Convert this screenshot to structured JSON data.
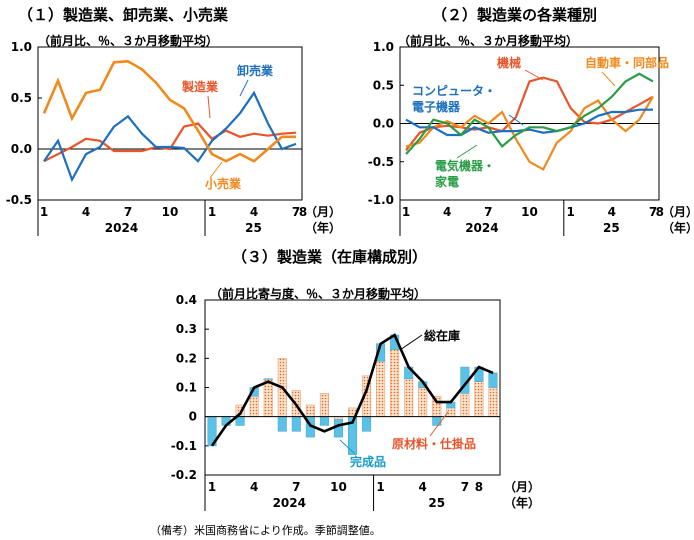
{
  "charts": [
    {
      "title": "（１）製造業、卸売業、小売業",
      "unit": "（前月比、％、３か月移動平均）",
      "ylim": [
        -0.5,
        1.0
      ],
      "yticks": [
        "1.0",
        "0.5",
        "0.0",
        "-0.5"
      ],
      "xtick_labels": [
        "1",
        "4",
        "7",
        "10",
        "1",
        "4",
        "7",
        "8"
      ],
      "xunit_month": "（月）",
      "xunit_year": "（年）",
      "year_labels": [
        "2024",
        "25"
      ],
      "series": [
        {
          "name": "製造業",
          "color": "#E8552B",
          "values": [
            -0.12,
            -0.05,
            0.02,
            0.1,
            0.08,
            -0.02,
            -0.02,
            -0.02,
            0.02,
            0.0,
            0.22,
            0.25,
            0.1,
            0.18,
            0.12,
            0.15,
            0.13,
            0.15,
            0.16
          ]
        },
        {
          "name": "卸売業",
          "color": "#1D6FBF",
          "values": [
            -0.12,
            0.08,
            -0.3,
            -0.05,
            0.02,
            0.22,
            0.32,
            0.15,
            0.02,
            0.02,
            0.01,
            -0.12,
            0.08,
            0.2,
            0.35,
            0.55,
            0.25,
            0.0,
            0.05
          ]
        },
        {
          "name": "小売業",
          "color": "#F08A1E",
          "values": [
            0.35,
            0.67,
            0.3,
            0.55,
            0.58,
            0.85,
            0.86,
            0.78,
            0.65,
            0.48,
            0.4,
            0.18,
            -0.05,
            -0.12,
            -0.05,
            -0.12,
            0.0,
            0.12,
            0.12
          ]
        }
      ]
    },
    {
      "title": "（２）製造業の各業種別",
      "unit": "（前月比、％、３か月移動平均）",
      "ylim": [
        -1.0,
        1.0
      ],
      "yticks": [
        "1.0",
        "0.5",
        "0.0",
        "-0.5",
        "-1.0"
      ],
      "xtick_labels": [
        "1",
        "4",
        "7",
        "10",
        "1",
        "4",
        "7",
        "8"
      ],
      "xunit_month": "（月）",
      "xunit_year": "（年）",
      "year_labels": [
        "2024",
        "25"
      ],
      "series": [
        {
          "name": "機械",
          "color": "#E8552B",
          "values": [
            -0.35,
            -0.12,
            -0.05,
            -0.03,
            -0.05,
            -0.08,
            -0.05,
            -0.1,
            0.08,
            0.55,
            0.6,
            0.55,
            0.2,
            0.02,
            0.0,
            0.05,
            0.15,
            0.25,
            0.35
          ]
        },
        {
          "name": "自動車・同部品",
          "color": "#F08A1E",
          "values": [
            -0.3,
            -0.25,
            -0.05,
            0.03,
            -0.05,
            0.1,
            0.0,
            0.15,
            -0.2,
            -0.5,
            -0.6,
            -0.25,
            -0.1,
            0.2,
            0.3,
            0.05,
            -0.1,
            0.05,
            0.35
          ]
        },
        {
          "name": "コンピュータ・電子機器",
          "color": "#1D6FBF",
          "values": [
            0.05,
            -0.05,
            -0.05,
            -0.15,
            -0.15,
            -0.05,
            -0.12,
            -0.1,
            -0.1,
            -0.08,
            -0.12,
            -0.1,
            -0.05,
            0.0,
            0.1,
            0.15,
            0.15,
            0.18,
            0.18
          ]
        },
        {
          "name": "電気機器・家電",
          "color": "#2A9C45",
          "values": [
            -0.4,
            -0.2,
            0.05,
            0.0,
            -0.15,
            0.05,
            -0.05,
            -0.3,
            -0.15,
            -0.05,
            -0.05,
            -0.1,
            -0.05,
            0.1,
            0.2,
            0.35,
            0.55,
            0.65,
            0.55
          ]
        }
      ]
    },
    {
      "title": "（３）製造業（在庫構成別）",
      "unit": "（前月比寄与度、％、３か月移動平均）",
      "ylim": [
        -0.2,
        0.4
      ],
      "yticks": [
        "0.4",
        "0.3",
        "0.2",
        "0.1",
        "0",
        "-0.1",
        "-0.2"
      ],
      "xtick_labels": [
        "1",
        "4",
        "7",
        "10",
        "1",
        "4",
        "7",
        "8"
      ],
      "xunit_month": "（月）",
      "xunit_year": "（年）",
      "year_labels": [
        "2024",
        "25"
      ],
      "stack_series": [
        {
          "name": "原材料・仕掛品",
          "color": "#F08A1E",
          "values": [
            0.0,
            0.0,
            0.04,
            0.07,
            0.13,
            0.2,
            0.09,
            0.04,
            0.08,
            -0.01,
            0.03,
            0.14,
            0.19,
            0.23,
            0.13,
            0.1,
            0.07,
            0.03,
            0.08,
            0.12,
            0.1
          ]
        },
        {
          "name": "完成品",
          "color": "#5BC2E7",
          "values": [
            -0.1,
            -0.03,
            -0.03,
            0.03,
            0.0,
            -0.05,
            -0.05,
            -0.07,
            -0.03,
            -0.06,
            -0.13,
            -0.05,
            0.06,
            0.05,
            0.04,
            0.02,
            -0.03,
            0.02,
            0.09,
            0.05,
            0.05
          ]
        }
      ],
      "line_series": {
        "name": "総在庫",
        "color": "#000000",
        "values": [
          -0.1,
          -0.03,
          0.01,
          0.1,
          0.12,
          0.1,
          0.04,
          -0.03,
          -0.05,
          -0.03,
          -0.02,
          0.09,
          0.25,
          0.28,
          0.17,
          0.12,
          0.05,
          0.05,
          0.11,
          0.17,
          0.15
        ]
      }
    }
  ],
  "note": "（備考）米国商務省により作成。季節調整値。"
}
